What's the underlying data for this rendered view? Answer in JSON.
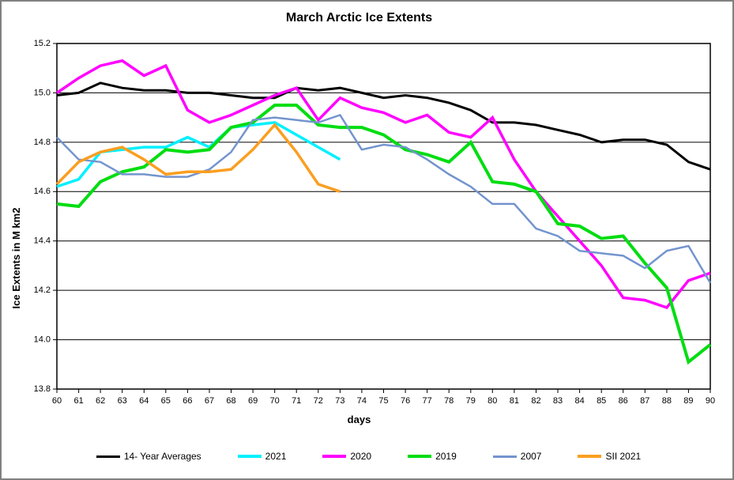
{
  "window": {
    "frame_color": "#808080",
    "background": "#ffffff"
  },
  "chart_data": {
    "type": "line",
    "title": "March Arctic Ice Extents",
    "xlabel": "days",
    "ylabel": "Ice Extents in M km2",
    "xlim": [
      60,
      90
    ],
    "ylim": [
      13.8,
      15.2
    ],
    "grid": "horizontal",
    "legend_position": "bottom",
    "axis_color": "#000000",
    "gridline_color": "#000000",
    "xticks": [
      60,
      61,
      62,
      63,
      64,
      65,
      66,
      67,
      68,
      69,
      70,
      71,
      72,
      73,
      74,
      75,
      76,
      77,
      78,
      79,
      80,
      81,
      82,
      83,
      84,
      85,
      86,
      87,
      88,
      89,
      90
    ],
    "yticks": [
      15.2,
      15.0,
      14.8,
      14.6,
      14.4,
      14.2,
      14.0,
      13.8
    ],
    "x": [
      60,
      61,
      62,
      63,
      64,
      65,
      66,
      67,
      68,
      69,
      70,
      71,
      72,
      73,
      74,
      75,
      76,
      77,
      78,
      79,
      80,
      81,
      82,
      83,
      84,
      85,
      86,
      87,
      88,
      89,
      90
    ],
    "series": [
      {
        "name": "14- Year Averages",
        "color": "#000000",
        "width": 3,
        "values": [
          14.99,
          15.0,
          15.04,
          15.02,
          15.01,
          15.01,
          15.0,
          15.0,
          14.99,
          14.98,
          14.98,
          15.02,
          15.01,
          15.02,
          15.0,
          14.98,
          14.99,
          14.98,
          14.96,
          14.93,
          14.88,
          14.88,
          14.87,
          14.85,
          14.83,
          14.8,
          14.81,
          14.81,
          14.79,
          14.72,
          14.69
        ]
      },
      {
        "name": "2021",
        "color": "#00f0ff",
        "width": 3.5,
        "values": [
          14.62,
          14.65,
          14.76,
          14.77,
          14.78,
          14.78,
          14.82,
          14.78,
          14.86,
          14.87,
          14.88,
          14.83,
          14.78,
          14.73
        ]
      },
      {
        "name": "2020",
        "color": "#ff00ff",
        "width": 3.5,
        "values": [
          15.0,
          15.06,
          15.11,
          15.13,
          15.07,
          15.11,
          14.93,
          14.88,
          14.91,
          14.95,
          14.99,
          15.02,
          14.89,
          14.98,
          14.94,
          14.92,
          14.88,
          14.91,
          14.84,
          14.82,
          14.9,
          14.73,
          14.6,
          14.5,
          14.4,
          14.3,
          14.17,
          14.16,
          14.13,
          14.24,
          14.27
        ]
      },
      {
        "name": "2019",
        "color": "#00dd11",
        "width": 4,
        "values": [
          14.55,
          14.54,
          14.64,
          14.68,
          14.7,
          14.77,
          14.76,
          14.77,
          14.86,
          14.88,
          14.95,
          14.95,
          14.87,
          14.86,
          14.86,
          14.83,
          14.77,
          14.75,
          14.72,
          14.8,
          14.64,
          14.63,
          14.6,
          14.47,
          14.46,
          14.41,
          14.42,
          14.31,
          14.21,
          13.91,
          13.98
        ]
      },
      {
        "name": "2007",
        "color": "#7394ce",
        "width": 2.5,
        "values": [
          14.82,
          14.73,
          14.72,
          14.67,
          14.67,
          14.66,
          14.66,
          14.69,
          14.76,
          14.89,
          14.9,
          14.89,
          14.88,
          14.91,
          14.77,
          14.79,
          14.78,
          14.73,
          14.67,
          14.62,
          14.55,
          14.55,
          14.45,
          14.42,
          14.36,
          14.35,
          14.34,
          14.29,
          14.36,
          14.38,
          14.23
        ]
      },
      {
        "name": "SII 2021",
        "color": "#fb9e20",
        "width": 3.5,
        "values": [
          14.63,
          14.72,
          14.76,
          14.78,
          14.73,
          14.67,
          14.68,
          14.68,
          14.69,
          14.77,
          14.87,
          14.76,
          14.63,
          14.6
        ]
      }
    ]
  }
}
